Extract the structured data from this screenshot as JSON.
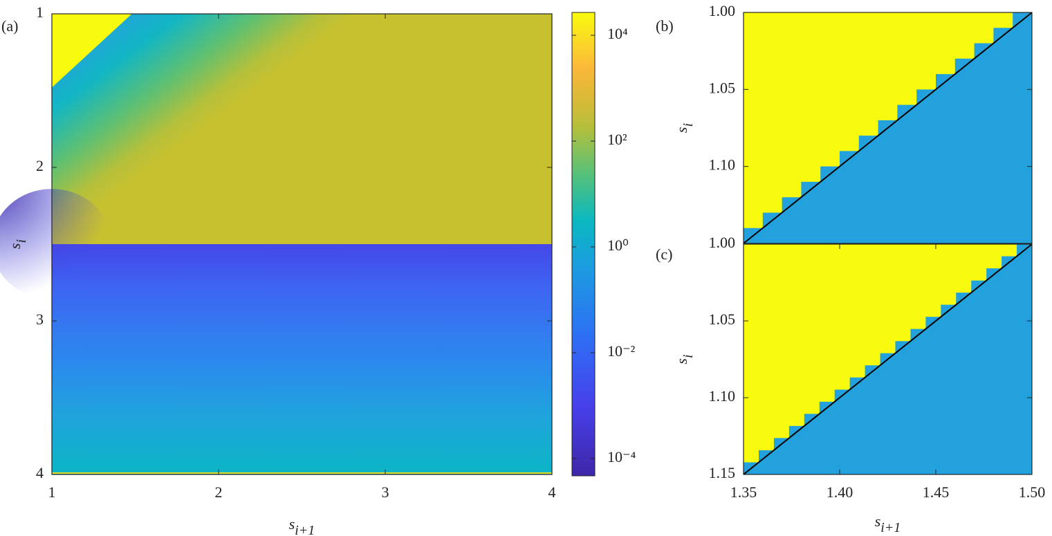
{
  "chart_data": [
    {
      "type": "heatmap",
      "panel_label": "(a)",
      "xlabel": {
        "text": "s",
        "subscript": "i+1"
      },
      "ylabel": {
        "text": "s",
        "subscript": "i"
      },
      "xlim": [
        1,
        4
      ],
      "ylim": [
        1,
        4
      ],
      "y_reversed": true,
      "xticks": [
        1,
        2,
        3,
        4
      ],
      "yticks": [
        1,
        2,
        3,
        4
      ],
      "colorbar": {
        "scale": "log",
        "clim": [
          4.7e-05,
          27000
        ],
        "ticks": [
          {
            "value": 0.0001,
            "label": "10⁻⁴"
          },
          {
            "value": 0.01,
            "label": "10⁻²"
          },
          {
            "value": 1,
            "label": "10⁰"
          },
          {
            "value": 100,
            "label": "10²"
          },
          {
            "value": 10000,
            "label": "10⁴"
          }
        ]
      }
    },
    {
      "type": "staircase",
      "panel_label": "(b)",
      "ylabel": {
        "text": "s",
        "subscript": "i"
      },
      "xlim": [
        1.35,
        1.5
      ],
      "ylim": [
        1,
        1.15
      ],
      "y_reversed": true,
      "yticks": [
        {
          "value": 1,
          "label": "1.00"
        },
        {
          "value": 1.05,
          "label": "1.05"
        },
        {
          "value": 1.1,
          "label": "1.10"
        }
      ],
      "colors": [
        "#f9fb0e",
        "#23a1dc"
      ],
      "line": {
        "x": [
          1.35,
          1.5
        ],
        "y": [
          1.15,
          1
        ],
        "color": "#000000"
      }
    },
    {
      "type": "staircase",
      "panel_label": "(c)",
      "xlabel": {
        "text": "s",
        "subscript": "i+1"
      },
      "ylabel": {
        "text": "s",
        "subscript": "i"
      },
      "xlim": [
        1.35,
        1.5
      ],
      "ylim": [
        1,
        1.15
      ],
      "y_reversed": true,
      "xticks": [
        {
          "value": 1.35,
          "label": "1.35"
        },
        {
          "value": 1.4,
          "label": "1.40"
        },
        {
          "value": 1.45,
          "label": "1.45"
        },
        {
          "value": 1.5,
          "label": "1.50"
        }
      ],
      "yticks": [
        {
          "value": 1,
          "label": "1.00"
        },
        {
          "value": 1.05,
          "label": "1.05"
        },
        {
          "value": 1.1,
          "label": "1.10"
        },
        {
          "value": 1.15,
          "label": "1.15"
        }
      ],
      "colors": [
        "#f9fb0e",
        "#23a1dc"
      ],
      "line": {
        "x": [
          1.35,
          1.5
        ],
        "y": [
          1.15,
          1
        ],
        "color": "#000000"
      }
    }
  ]
}
